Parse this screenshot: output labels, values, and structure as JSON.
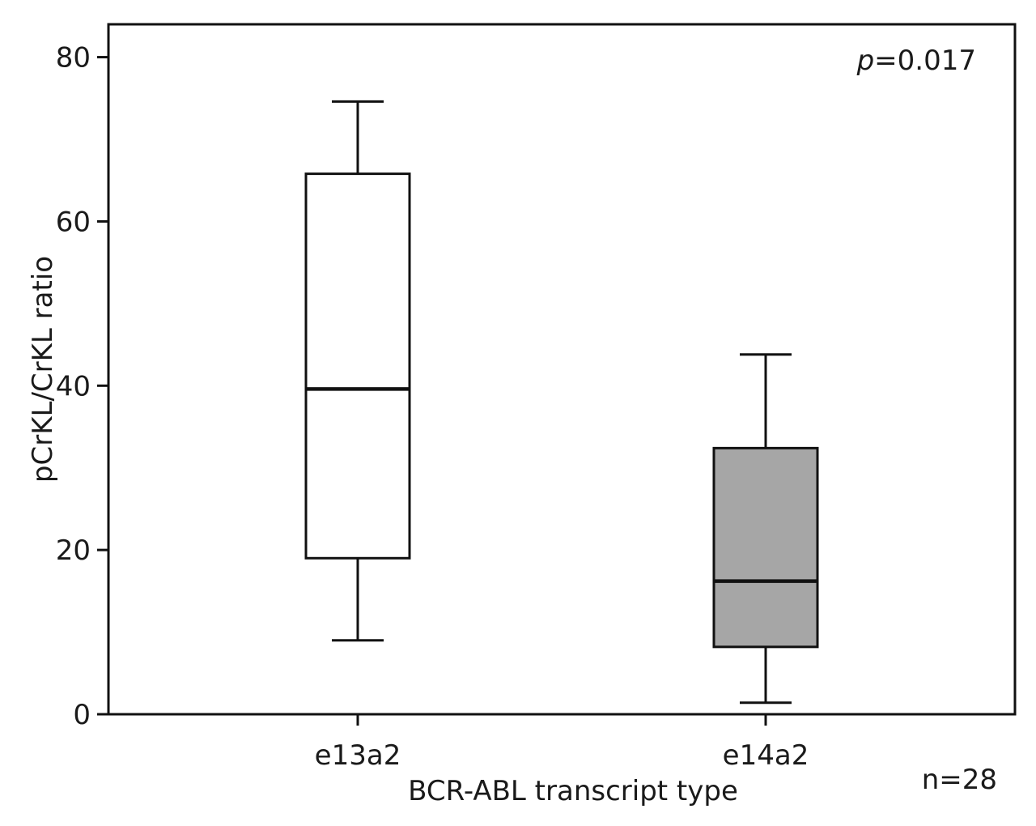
{
  "chart_data": {
    "type": "boxplot",
    "title": "",
    "xlabel": "BCR-ABL transcript type",
    "ylabel": "pCrKL/CrKL ratio",
    "ylim": [
      0,
      84
    ],
    "yticks": [
      0,
      20,
      40,
      60,
      80
    ],
    "grid": false,
    "categories": [
      "e13a2",
      "e14a2"
    ],
    "boxes": [
      {
        "category": "e13a2",
        "whisker_low": 9,
        "q1": 19,
        "median": 39.6,
        "q3": 65.8,
        "whisker_high": 74.6,
        "fill": "#ffffff"
      },
      {
        "category": "e14a2",
        "whisker_low": 1.4,
        "q1": 8.2,
        "median": 16.2,
        "q3": 32.4,
        "whisker_high": 43.8,
        "fill": "#a6a6a6"
      }
    ],
    "annotations": {
      "p_label": "p",
      "p_value": "=0.017",
      "n": "n=28"
    }
  }
}
